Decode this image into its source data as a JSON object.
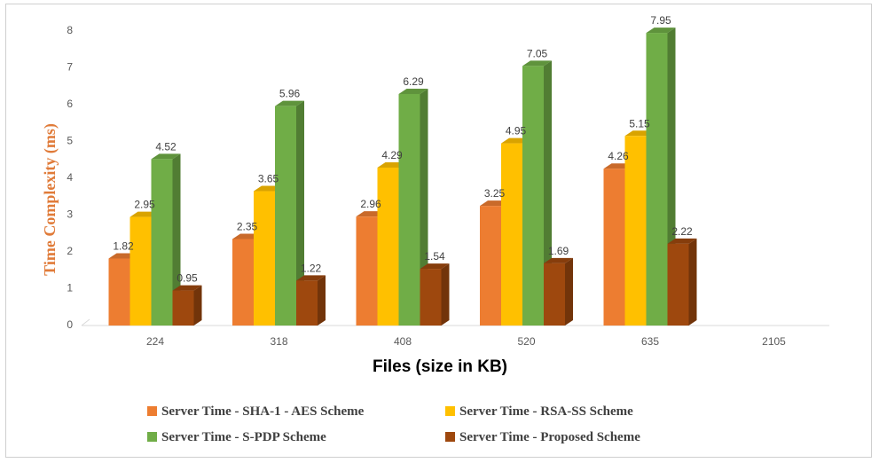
{
  "chart_data": {
    "type": "bar",
    "title": "",
    "xlabel": "Files (size in KB)",
    "ylabel": "Time Complexity (ms)",
    "ylim": [
      0,
      8
    ],
    "yticks": [
      "0",
      "1",
      "2",
      "3",
      "4",
      "5",
      "6",
      "7",
      "8"
    ],
    "categories": [
      "224",
      "318",
      "408",
      "520",
      "635",
      "2105"
    ],
    "grid": false,
    "legend_position": "bottom",
    "series": [
      {
        "name": "Server Time - SHA-1 - AES Scheme",
        "color": "#ed7d31",
        "values": [
          1.82,
          2.35,
          2.96,
          3.25,
          4.26,
          null
        ],
        "labels": [
          "1.82",
          "2.35",
          "2.96",
          "3.25",
          "4.26",
          ""
        ]
      },
      {
        "name": "Server Time - RSA-SS Scheme",
        "color": "#ffc000",
        "values": [
          2.95,
          3.65,
          4.29,
          4.95,
          5.15,
          null
        ],
        "labels": [
          "2.95",
          "3.65",
          "4.29",
          "4.95",
          "5.15",
          ""
        ]
      },
      {
        "name": "Server Time - S-PDP Scheme",
        "color": "#70ad47",
        "values": [
          4.52,
          5.96,
          6.29,
          7.05,
          7.95,
          null
        ],
        "labels": [
          "4.52",
          "5.96",
          "6.29",
          "7.05",
          "7.95",
          ""
        ]
      },
      {
        "name": "Server Time - Proposed Scheme",
        "color": "#9e480e",
        "values": [
          0.95,
          1.22,
          1.54,
          1.69,
          2.22,
          null
        ],
        "labels": [
          "0.95",
          "1.22",
          "1.54",
          "1.69",
          "2.22",
          ""
        ]
      }
    ]
  }
}
